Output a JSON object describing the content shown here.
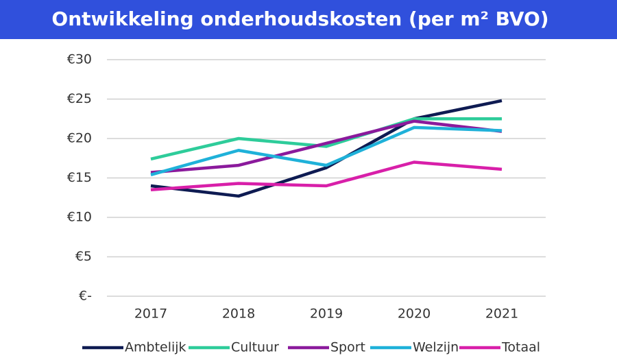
{
  "chart_data": {
    "type": "line",
    "title": "Ontwikkeling onderhoudskosten (per m² BVO)",
    "categories": [
      "2017",
      "2018",
      "2019",
      "2020",
      "2021"
    ],
    "series": [
      {
        "name": "Ambtelijk",
        "color": "#0e1b52",
        "values": [
          14.0,
          12.7,
          16.3,
          22.5,
          24.8
        ]
      },
      {
        "name": "Cultuur",
        "color": "#2ecc9a",
        "values": [
          17.4,
          20.0,
          19.0,
          22.5,
          22.5
        ]
      },
      {
        "name": "Sport",
        "color": "#8b1a9c",
        "values": [
          15.7,
          16.6,
          19.4,
          22.2,
          20.9
        ]
      },
      {
        "name": "Welzijn",
        "color": "#1fb1d9",
        "values": [
          15.4,
          18.5,
          16.6,
          21.4,
          21.0
        ]
      },
      {
        "name": "Totaal",
        "color": "#d81fa9",
        "values": [
          13.5,
          14.3,
          14.0,
          17.0,
          16.1
        ]
      }
    ],
    "ylim": [
      0,
      30
    ],
    "yticks": [
      {
        "value": 0,
        "label": "€-"
      },
      {
        "value": 5,
        "label": "€5"
      },
      {
        "value": 10,
        "label": "€10"
      },
      {
        "value": 15,
        "label": "€15"
      },
      {
        "value": 20,
        "label": "€20"
      },
      {
        "value": 25,
        "label": "€25"
      },
      {
        "value": 30,
        "label": "€30"
      }
    ],
    "grid": true,
    "legend": "bottom"
  }
}
